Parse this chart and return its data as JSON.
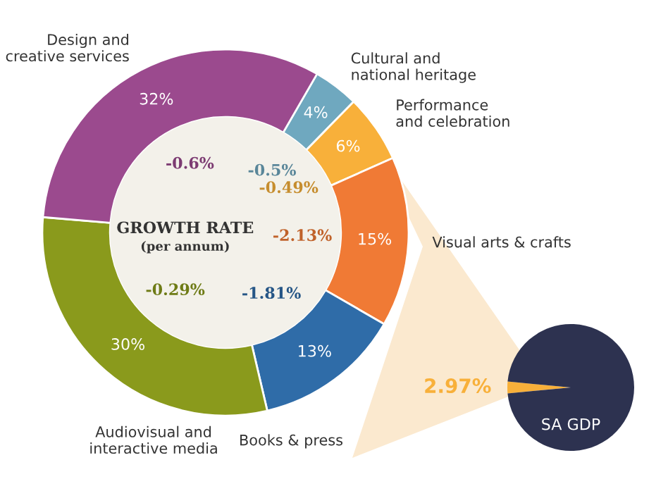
{
  "chart_data": [
    {
      "type": "donut",
      "categories": [
        "Cultural and\nnational heritage",
        "Performance\nand celebration",
        "Visual arts & crafts",
        "Books & press",
        "Audiovisual and\ninteractive media",
        "Design and\ncreative services"
      ],
      "values": [
        4,
        6,
        15,
        13,
        30,
        32
      ],
      "colors": [
        "#6fa8bf",
        "#f8b03a",
        "#f07a35",
        "#2f6ca8",
        "#8a9a1c",
        "#9b4a8e"
      ],
      "value_labels": [
        "4%",
        "6%",
        "15%",
        "13%",
        "30%",
        "32%"
      ],
      "annotations": [
        "GROWTH RATE",
        "(per annum)",
        "-0.5%",
        "-0.49%",
        "-2.13%",
        "-1.81%",
        "-0.29%",
        "-0.6%"
      ]
    },
    {
      "type": "pie",
      "categories": [
        null,
        "SA GDP"
      ],
      "values": [
        2.97,
        97.03
      ],
      "colors": [
        "#f8b03a",
        "#2d3250"
      ],
      "value_labels": [
        "2.97%",
        null
      ]
    }
  ]
}
